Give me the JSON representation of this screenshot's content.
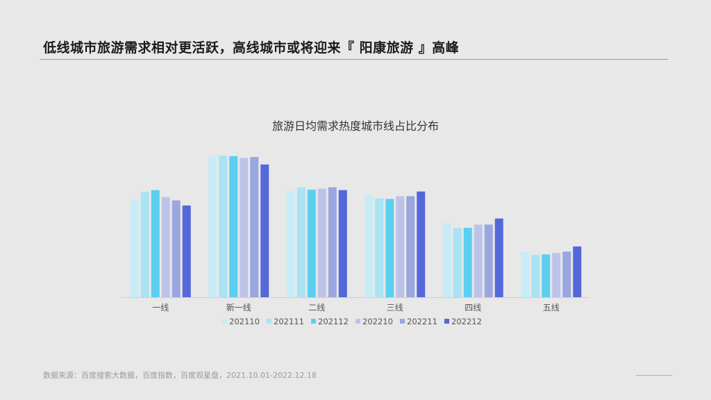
{
  "header": {
    "title": "低线城市旅游需求相对更活跃，高线城市或将迎来『 阳康旅游 』高峰"
  },
  "footer": {
    "source": "数据来源：百度搜索大数据，百度指数，百度观星盘，2021.10.01-2022.12.18"
  },
  "chart_data": {
    "type": "bar",
    "title": "旅游日均需求热度城市线占比分布",
    "categories": [
      "一线",
      "新一线",
      "二线",
      "三线",
      "四线",
      "五线"
    ],
    "series": [
      {
        "name": "202110",
        "color": "#c7ecf6",
        "values": [
          21.0,
          30.2,
          22.8,
          22.0,
          16.0,
          9.7
        ]
      },
      {
        "name": "202111",
        "color": "#a9e3f4",
        "values": [
          22.6,
          30.4,
          23.6,
          21.2,
          14.9,
          9.1
        ]
      },
      {
        "name": "202112",
        "color": "#5bcff0",
        "values": [
          23.0,
          30.3,
          23.1,
          21.1,
          14.9,
          9.2
        ]
      },
      {
        "name": "202210",
        "color": "#bdc3e8",
        "values": [
          21.5,
          29.9,
          23.3,
          21.7,
          15.6,
          9.5
        ]
      },
      {
        "name": "202211",
        "color": "#9aa6df",
        "values": [
          20.8,
          30.1,
          23.6,
          21.7,
          15.6,
          9.8
        ]
      },
      {
        "name": "202212",
        "color": "#5468d9",
        "values": [
          19.7,
          28.5,
          23.0,
          22.7,
          16.9,
          10.9
        ]
      }
    ],
    "ylim": [
      0,
      34
    ],
    "grid": false,
    "legend": "bottom"
  }
}
